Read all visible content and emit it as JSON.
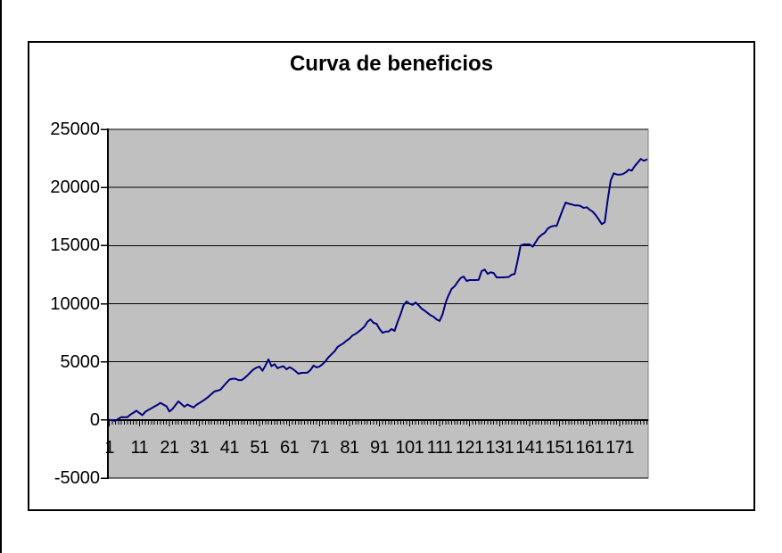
{
  "chart_data": {
    "type": "line",
    "title": "Curva de beneficios",
    "xlabel": "",
    "ylabel": "",
    "ylim": [
      -5000,
      25000
    ],
    "yticks": [
      25000,
      20000,
      15000,
      10000,
      5000,
      0,
      -5000
    ],
    "xticks": [
      1,
      11,
      21,
      31,
      41,
      51,
      61,
      71,
      81,
      91,
      101,
      111,
      121,
      131,
      141,
      151,
      161,
      171
    ],
    "n_points": 180,
    "grid": "horizontal",
    "legend": "none",
    "values": [
      0,
      -30,
      -80,
      100,
      250,
      240,
      230,
      470,
      620,
      790,
      600,
      420,
      710,
      860,
      1010,
      1150,
      1300,
      1470,
      1320,
      1180,
      720,
      950,
      1280,
      1600,
      1370,
      1140,
      1330,
      1200,
      1070,
      1300,
      1460,
      1620,
      1800,
      2000,
      2230,
      2450,
      2520,
      2600,
      2900,
      3200,
      3480,
      3550,
      3550,
      3430,
      3420,
      3600,
      3840,
      4100,
      4350,
      4500,
      4580,
      4230,
      4700,
      5210,
      4620,
      4800,
      4450,
      4550,
      4620,
      4350,
      4540,
      4400,
      4200,
      3980,
      4050,
      4050,
      4080,
      4300,
      4680,
      4520,
      4600,
      4800,
      5060,
      5400,
      5650,
      5900,
      6280,
      6450,
      6600,
      6820,
      7000,
      7280,
      7400,
      7600,
      7800,
      8050,
      8450,
      8650,
      8350,
      8270,
      7820,
      7500,
      7600,
      7600,
      7820,
      7660,
      8430,
      9100,
      9880,
      10190,
      10000,
      9900,
      10100,
      9880,
      9580,
      9400,
      9200,
      9000,
      8880,
      8650,
      8510,
      9100,
      10100,
      10740,
      11270,
      11500,
      11870,
      12200,
      12340,
      11960,
      12030,
      12030,
      12030,
      12050,
      12800,
      12940,
      12560,
      12700,
      12640,
      12260,
      12260,
      12260,
      12280,
      12300,
      12490,
      12560,
      13700,
      15000,
      15100,
      15100,
      15100,
      14900,
      15300,
      15700,
      15930,
      16100,
      16450,
      16620,
      16700,
      16700,
      17400,
      18080,
      18700,
      18600,
      18540,
      18460,
      18460,
      18400,
      18230,
      18300,
      18080,
      17920,
      17620,
      17240,
      16850,
      17000,
      18900,
      20600,
      21220,
      21120,
      21100,
      21150,
      21300,
      21530,
      21450,
      21840,
      22140,
      22450,
      22300,
      22400
    ],
    "colors": {
      "line": "#000080",
      "plot_bg": "#c0c0c0",
      "grid": "#000000",
      "axis": "#000000",
      "chart_bg": "#ffffff",
      "frame_border": "#000000"
    }
  }
}
